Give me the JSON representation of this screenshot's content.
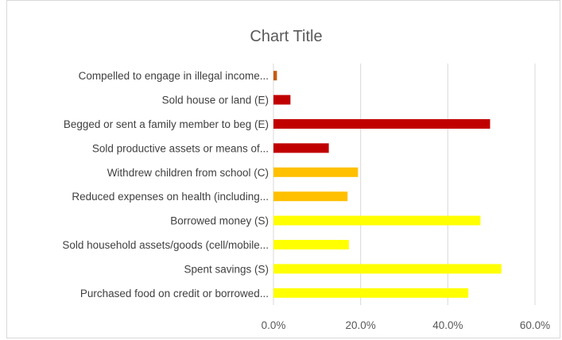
{
  "chart_data": {
    "type": "bar",
    "orientation": "horizontal",
    "title": "Chart Title",
    "xlabel": "",
    "ylabel": "",
    "xlim": [
      0,
      0.6
    ],
    "grid": true,
    "legend": "none",
    "tick_labels": [
      "0.0%",
      "20.0%",
      "40.0%",
      "60.0%"
    ],
    "ticks": [
      0,
      0.2,
      0.4,
      0.6
    ],
    "categories": [
      "Compelled to engage in illegal income...",
      "Sold house or land (E)",
      "Begged or sent a family member to beg (E)",
      "Sold productive assets or means of...",
      "Withdrew children from school (C)",
      "Reduced expenses on health (including...",
      "Borrowed money (S)",
      "Sold household assets/goods (cell/mobile...",
      "Spent savings (S)",
      "Purchased food on credit or borrowed..."
    ],
    "values": [
      0.008,
      0.039,
      0.497,
      0.127,
      0.194,
      0.17,
      0.475,
      0.173,
      0.523,
      0.447
    ],
    "colors": [
      "#c55a11",
      "#c00000",
      "#c00000",
      "#c00000",
      "#ffc000",
      "#ffc000",
      "#ffff00",
      "#ffff00",
      "#ffff00",
      "#ffff00"
    ]
  }
}
